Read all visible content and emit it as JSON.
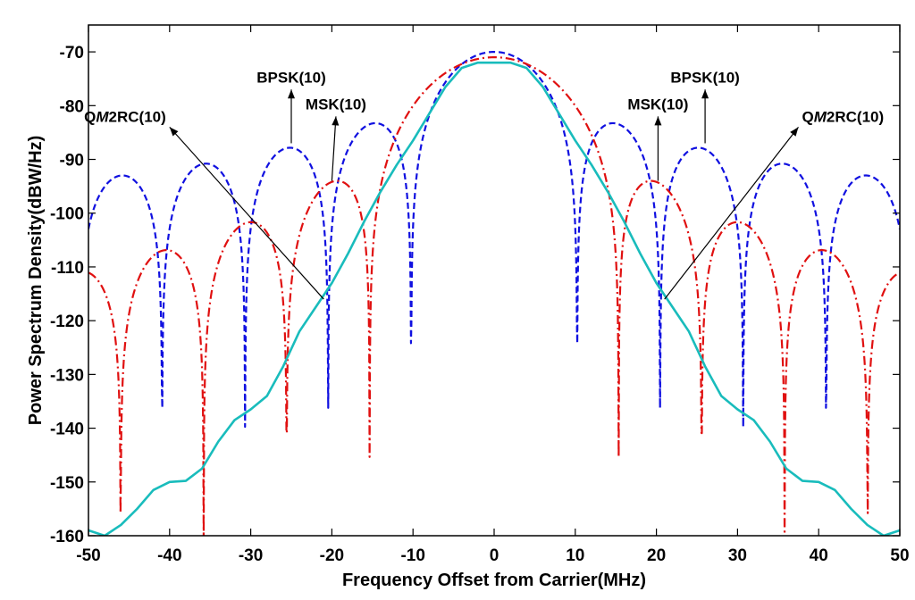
{
  "chart_data": {
    "type": "line",
    "title": "",
    "xlabel": "Frequency Offset from Carrier(MHz)",
    "ylabel": "Power Spectrum Density(dBW/Hz)",
    "xlim": [
      -50,
      50
    ],
    "ylim": [
      -160,
      -65
    ],
    "xticks": [
      -50,
      -40,
      -30,
      -20,
      -10,
      0,
      10,
      20,
      30,
      40,
      50
    ],
    "yticks": [
      -70,
      -80,
      -90,
      -100,
      -110,
      -120,
      -130,
      -140,
      -150,
      -160
    ],
    "grid": false,
    "series": [
      {
        "name": "BPSK(10)",
        "color": "#1010e0",
        "style": "dashed",
        "model": "sinc-squared",
        "chip_rate_mhz": 10.23,
        "peak_db": -70,
        "floor_db": -160
      },
      {
        "name": "MSK(10)",
        "color": "#e01010",
        "style": "dash-dot",
        "model": "msk",
        "chip_rate_mhz": 10.23,
        "peak_db": -71,
        "floor_db": -160
      },
      {
        "name": "QM2RC(10)",
        "color": "#19bcbc",
        "style": "solid",
        "points": [
          [
            -50,
            -159
          ],
          [
            -48,
            -160
          ],
          [
            -46,
            -158
          ],
          [
            -44,
            -155
          ],
          [
            -42,
            -151.5
          ],
          [
            -40,
            -150
          ],
          [
            -38,
            -149.8
          ],
          [
            -36,
            -147.5
          ],
          [
            -34,
            -142.5
          ],
          [
            -32,
            -138.5
          ],
          [
            -30,
            -136.5
          ],
          [
            -28,
            -134
          ],
          [
            -26,
            -128.5
          ],
          [
            -24,
            -122
          ],
          [
            -22,
            -117.5
          ],
          [
            -20,
            -113
          ],
          [
            -18,
            -107.5
          ],
          [
            -16,
            -101.5
          ],
          [
            -14,
            -96
          ],
          [
            -12,
            -91
          ],
          [
            -10,
            -86.5
          ],
          [
            -8,
            -81.5
          ],
          [
            -6,
            -76.5
          ],
          [
            -4,
            -73
          ],
          [
            -2,
            -72
          ],
          [
            0,
            -72
          ],
          [
            2,
            -72
          ],
          [
            4,
            -73
          ],
          [
            6,
            -76.5
          ],
          [
            8,
            -81.5
          ],
          [
            10,
            -86.5
          ],
          [
            12,
            -91
          ],
          [
            14,
            -96
          ],
          [
            16,
            -101.5
          ],
          [
            18,
            -107.5
          ],
          [
            20,
            -113
          ],
          [
            22,
            -117.5
          ],
          [
            24,
            -122
          ],
          [
            26,
            -128.5
          ],
          [
            28,
            -134
          ],
          [
            30,
            -136.5
          ],
          [
            32,
            -138.5
          ],
          [
            34,
            -142.5
          ],
          [
            36,
            -147.5
          ],
          [
            38,
            -149.8
          ],
          [
            40,
            -150
          ],
          [
            42,
            -151.5
          ],
          [
            44,
            -155
          ],
          [
            46,
            -158
          ],
          [
            48,
            -160
          ],
          [
            50,
            -159
          ]
        ]
      }
    ],
    "annotations": [
      {
        "text": "BPSK(10)",
        "x": -25,
        "y": -87,
        "label_x": -25,
        "label_y": -77
      },
      {
        "text": "MSK(10)",
        "x": -20,
        "y": -94,
        "label_x": -19.5,
        "label_y": -82
      },
      {
        "text": "QM2RC(10)",
        "x": -21,
        "y": -116,
        "label_x": -40,
        "label_y": -84
      },
      {
        "text": "MSK(10)",
        "x": 20.2,
        "y": -94,
        "label_x": 20.2,
        "label_y": -82
      },
      {
        "text": "BPSK(10)",
        "x": 26,
        "y": -87,
        "label_x": 26,
        "label_y": -77
      },
      {
        "text": "QM2RC(10)",
        "x": 21,
        "y": -116,
        "label_x": 37.5,
        "label_y": -84
      }
    ]
  }
}
